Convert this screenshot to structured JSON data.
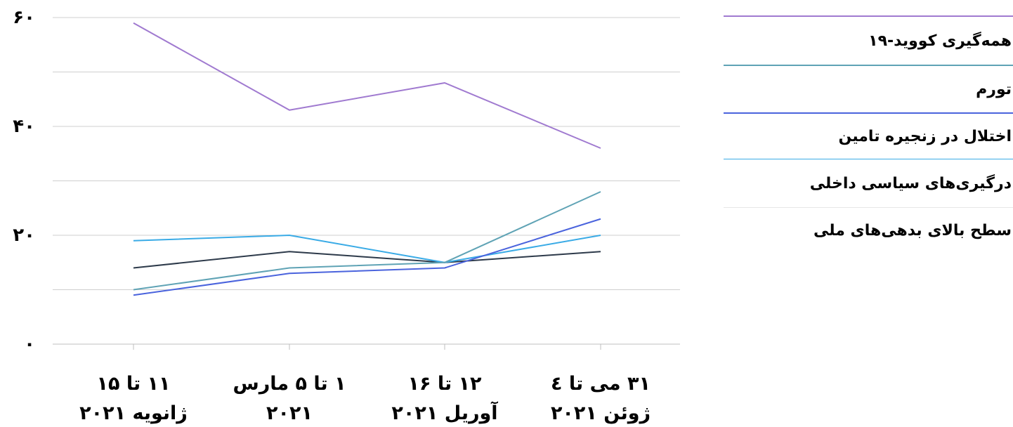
{
  "chart_data": {
    "type": "line",
    "categories": [
      [
        "۱۱ تا ۱۵",
        "ژانویه ۲۰۲۱"
      ],
      [
        "۱ تا ۵ مارس",
        "۲۰۲۱"
      ],
      [
        "۱۲ تا ۱۶",
        "آوریل ۲۰۲۱"
      ],
      [
        "۳۱ می تا ٤",
        "ژوئن ۲۰۲۱"
      ]
    ],
    "yticks": [
      {
        "value": 60,
        "label": "۶۰"
      },
      {
        "value": 40,
        "label": "۴۰"
      },
      {
        "value": 20,
        "label": "۲۰"
      },
      {
        "value": 0,
        "label": "۰"
      }
    ],
    "ylim": [
      0,
      60
    ],
    "gridlines": [
      0,
      10,
      20,
      30,
      40,
      50,
      60
    ],
    "grid": true,
    "legend_position": "right",
    "series": [
      {
        "name": "همه‌گیری کووید-۱۹",
        "color": "#a07ad0",
        "values": [
          59,
          43,
          48,
          36
        ]
      },
      {
        "name": "تورم",
        "color": "#5fa3b5",
        "values": [
          10,
          14,
          15,
          28
        ]
      },
      {
        "name": "اختلال در زنجیره تامین",
        "color": "#4a63dd",
        "values": [
          9,
          13,
          14,
          23
        ]
      },
      {
        "name": "درگیری‌های سیاسی داخلی",
        "color": "#3aabe6",
        "values": [
          19,
          20,
          15,
          20
        ]
      },
      {
        "name": "سطح بالای بدهی‌های ملی",
        "color": "#2d3a4a",
        "values": [
          14,
          17,
          15,
          17
        ]
      }
    ]
  }
}
